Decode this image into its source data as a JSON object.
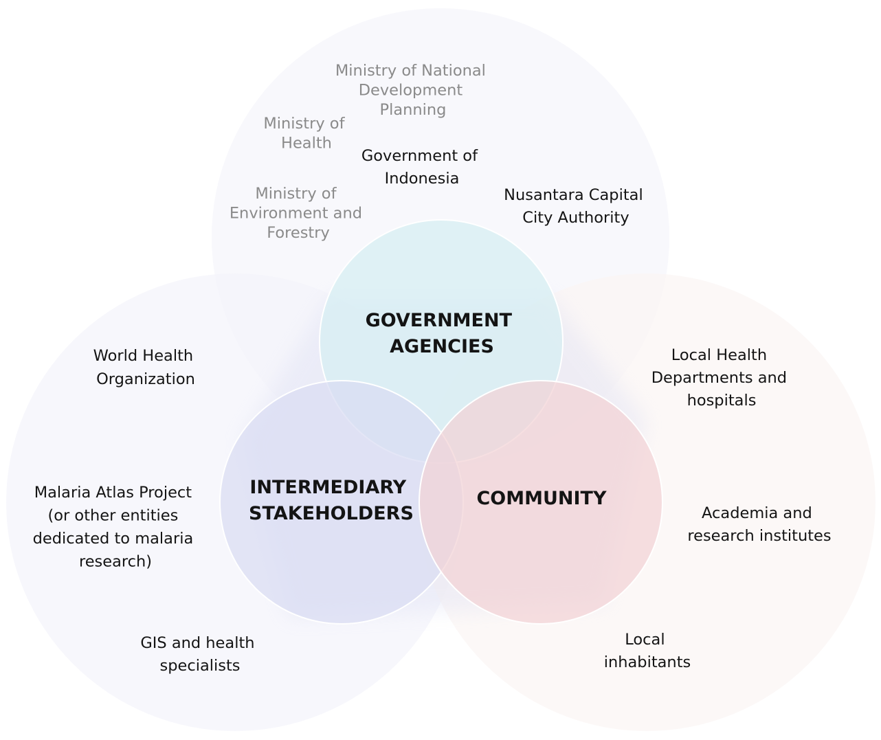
{
  "colors": {
    "background": "#ffffff",
    "text_primary": "#141414",
    "text_muted": "#8a8a8a",
    "government": "#d6eef3",
    "intermediary": "#d9dcf2",
    "community": "#f3d3d6",
    "government_halo": "#f5f6fb",
    "intermediary_halo": "#f4f4fb",
    "community_halo": "#fbf5f4",
    "core_outline": "#ffffff"
  },
  "groups": {
    "government": {
      "label_lines": [
        "GOVERNMENT",
        "AGENCIES"
      ],
      "stakeholders": [
        {
          "lines": [
            "Ministry of National",
            "Development",
            "Planning"
          ],
          "muted": true
        },
        {
          "lines": [
            "Ministry of",
            "Health"
          ],
          "muted": true
        },
        {
          "lines": [
            "Government of",
            "Indonesia"
          ],
          "muted": false
        },
        {
          "lines": [
            "Ministry of",
            "Environment and",
            "Forestry"
          ],
          "muted": true
        },
        {
          "lines": [
            "Nusantara Capital",
            "City Authority"
          ],
          "muted": false
        }
      ]
    },
    "intermediary": {
      "label_lines": [
        "INTERMEDIARY",
        "STAKEHOLDERS"
      ],
      "stakeholders": [
        {
          "lines": [
            "World Health",
            "Organization"
          ],
          "muted": false
        },
        {
          "lines": [
            "Malaria Atlas Project",
            "(or other entities",
            "dedicated to malaria",
            "research)"
          ],
          "muted": false
        },
        {
          "lines": [
            "GIS and health",
            "specialists"
          ],
          "muted": false
        }
      ]
    },
    "community": {
      "label_lines": [
        "COMMUNITY"
      ],
      "stakeholders": [
        {
          "lines": [
            "Local Health",
            "Departments and",
            "hospitals"
          ],
          "muted": false
        },
        {
          "lines": [
            "Academia and",
            "research institutes"
          ],
          "muted": false
        },
        {
          "lines": [
            "Local",
            "inhabitants"
          ],
          "muted": false
        }
      ]
    }
  }
}
